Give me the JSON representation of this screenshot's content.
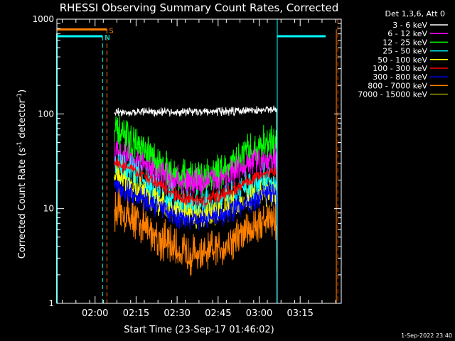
{
  "chart_data": {
    "type": "line",
    "title": "RHESSI Observing Summary Count Rates, Corrected",
    "xlabel": "Start Time (23-Sep-17 01:46:02)",
    "ylabel_main": "Corrected Count Rate (s",
    "ylabel_sup1": "-1",
    "ylabel_mid": " detector",
    "ylabel_sup2": "-1",
    "ylabel_end": ")",
    "yscale": "log",
    "ylim": [
      1,
      1000
    ],
    "xlim_minutes": [
      0,
      104
    ],
    "yticks": [
      {
        "value": 1,
        "label": "1"
      },
      {
        "value": 10,
        "label": "10"
      },
      {
        "value": 100,
        "label": "100"
      },
      {
        "value": 1000,
        "label": "1000"
      }
    ],
    "xticks": [
      {
        "minute": 13.97,
        "label": "02:00"
      },
      {
        "minute": 28.97,
        "label": "02:15"
      },
      {
        "minute": 43.97,
        "label": "02:30"
      },
      {
        "minute": 58.97,
        "label": "02:45"
      },
      {
        "minute": 73.97,
        "label": "03:00"
      },
      {
        "minute": 88.97,
        "label": "03:15"
      }
    ],
    "legend_header": "Det 1,3,6, Att 0",
    "legend_position": "top-right outside",
    "series": [
      {
        "name": "3 - 6 keV",
        "color": "#ffffff",
        "anchors": [
          [
            21,
            105
          ],
          [
            45,
            105
          ],
          [
            62,
            106
          ],
          [
            78,
            110
          ],
          [
            80.5,
            112
          ]
        ],
        "noise": 0.06
      },
      {
        "name": "6 - 12 keV",
        "color": "#ff00ff",
        "anchors": [
          [
            21,
            42
          ],
          [
            28,
            33
          ],
          [
            37,
            23
          ],
          [
            45,
            19
          ],
          [
            54,
            19
          ],
          [
            62,
            22
          ],
          [
            72,
            30
          ],
          [
            78,
            35
          ],
          [
            80.5,
            32
          ]
        ],
        "noise": 0.22
      },
      {
        "name": "12 - 25 keV",
        "color": "#00ff00",
        "anchors": [
          [
            21,
            65
          ],
          [
            28,
            48
          ],
          [
            37,
            30
          ],
          [
            45,
            22
          ],
          [
            54,
            21
          ],
          [
            62,
            27
          ],
          [
            72,
            42
          ],
          [
            78,
            50
          ],
          [
            80.5,
            45
          ]
        ],
        "noise": 0.26
      },
      {
        "name": "25 - 50 keV",
        "color": "#00ffff",
        "anchors": [
          [
            21,
            28
          ],
          [
            28,
            23
          ],
          [
            37,
            15
          ],
          [
            45,
            11
          ],
          [
            54,
            10.5
          ],
          [
            62,
            12.5
          ],
          [
            72,
            18
          ],
          [
            78,
            21
          ],
          [
            80.5,
            19
          ]
        ],
        "noise": 0.24
      },
      {
        "name": "50 - 100 keV",
        "color": "#ffff00",
        "anchors": [
          [
            21,
            22
          ],
          [
            28,
            17.5
          ],
          [
            37,
            11.5
          ],
          [
            45,
            9
          ],
          [
            54,
            8.5
          ],
          [
            62,
            10
          ],
          [
            72,
            13.5
          ],
          [
            78,
            15
          ],
          [
            80.5,
            13
          ]
        ],
        "noise": 0.2
      },
      {
        "name": "100 - 300 keV",
        "color": "#ff0000",
        "anchors": [
          [
            21,
            31
          ],
          [
            28,
            26
          ],
          [
            37,
            18
          ],
          [
            45,
            13
          ],
          [
            54,
            12
          ],
          [
            62,
            14.5
          ],
          [
            72,
            21
          ],
          [
            78,
            25
          ],
          [
            80.5,
            23
          ]
        ],
        "noise": 0.1
      },
      {
        "name": "300 - 800 keV",
        "color": "#0000ff",
        "anchors": [
          [
            21,
            17
          ],
          [
            28,
            14.5
          ],
          [
            37,
            10.5
          ],
          [
            45,
            8
          ],
          [
            54,
            7.5
          ],
          [
            62,
            9
          ],
          [
            72,
            12.5
          ],
          [
            78,
            14.5
          ],
          [
            80.5,
            14
          ]
        ],
        "noise": 0.16
      },
      {
        "name": "800 - 7000 keV",
        "color": "#ff8000",
        "anchors": [
          [
            21,
            10
          ],
          [
            28,
            8
          ],
          [
            37,
            5
          ],
          [
            45,
            3.5
          ],
          [
            54,
            3.2
          ],
          [
            62,
            4.2
          ],
          [
            72,
            6.5
          ],
          [
            78,
            8
          ],
          [
            80.5,
            7.5
          ]
        ],
        "noise": 0.3
      },
      {
        "name": "7000 - 15000 keV",
        "color": "#999900",
        "anchors": [],
        "noise": 0
      }
    ],
    "flags": [
      {
        "label": "S",
        "color": "#ff8000",
        "level": 780,
        "start_minute": 0,
        "end_minute": 18.3,
        "dash_minute": 18.3,
        "right_minute": 102.2
      },
      {
        "label": "N",
        "color": "#00ffff",
        "level": 660,
        "start_minute": 0,
        "end_minute": 16.7,
        "dash_minute": 16.7,
        "right_start_minute": 80.6
      }
    ]
  },
  "footer": {
    "date_stamp": "1-Sep-2022 23:40"
  },
  "colors": {
    "background": "#000000",
    "axis": "#ffffff"
  }
}
